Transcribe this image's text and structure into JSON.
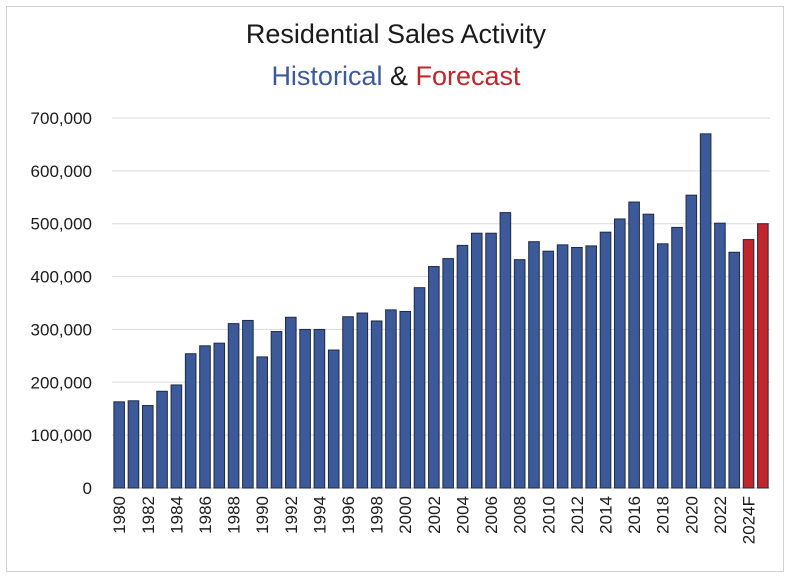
{
  "chart_data": {
    "type": "bar",
    "title": "Residential Sales Activity",
    "subtitle": {
      "historical": "Historical",
      "amp": "&",
      "forecast": "Forecast"
    },
    "xlabel": "",
    "ylabel": "",
    "ylim": [
      0,
      700000
    ],
    "yticks": [
      "0",
      "100,000",
      "200,000",
      "300,000",
      "400,000",
      "500,000",
      "600,000",
      "700,000"
    ],
    "grid": true,
    "categories": [
      "1980",
      "1981",
      "1982",
      "1983",
      "1984",
      "1985",
      "1986",
      "1987",
      "1988",
      "1989",
      "1990",
      "1991",
      "1992",
      "1993",
      "1994",
      "1995",
      "1996",
      "1997",
      "1998",
      "1999",
      "2000",
      "2001",
      "2002",
      "2003",
      "2004",
      "2005",
      "2006",
      "2007",
      "2008",
      "2009",
      "2010",
      "2011",
      "2012",
      "2013",
      "2014",
      "2015",
      "2016",
      "2017",
      "2018",
      "2019",
      "2020",
      "2021",
      "2022",
      "2023",
      "2024F",
      "2025F"
    ],
    "xtick_labels": [
      "1980",
      "1982",
      "1984",
      "1986",
      "1988",
      "1990",
      "1992",
      "1994",
      "1996",
      "1998",
      "2000",
      "2002",
      "2004",
      "2006",
      "2008",
      "2010",
      "2012",
      "2014",
      "2016",
      "2018",
      "2020",
      "2022",
      "2024F"
    ],
    "values": [
      163000,
      165000,
      156000,
      183000,
      195000,
      254000,
      269000,
      274000,
      311000,
      317000,
      248000,
      296000,
      323000,
      300000,
      300000,
      261000,
      324000,
      331000,
      316000,
      337000,
      334000,
      379000,
      419000,
      434000,
      459000,
      482000,
      482000,
      521000,
      432000,
      466000,
      448000,
      460000,
      455000,
      458000,
      484000,
      509000,
      541000,
      518000,
      462000,
      493000,
      554000,
      670000,
      501000,
      446000,
      470000,
      500000
    ],
    "forecast_start_index": 44,
    "colors": {
      "historical": "#3c5a9a",
      "forecast": "#c0262c",
      "bar_outline": "#1f2a44",
      "grid": "#d9d9d9"
    }
  }
}
